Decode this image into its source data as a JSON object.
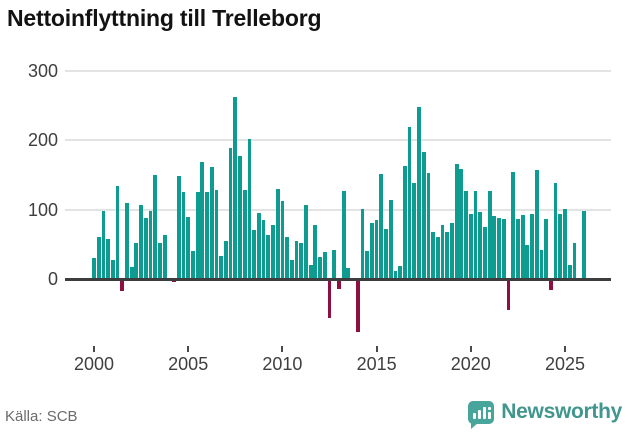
{
  "title": "Nettoinflyttning till Trelleborg",
  "source": "Källa: SCB",
  "logo": {
    "name": "Newsworthy",
    "icon": "bar-chart-speech-bubble-icon"
  },
  "chart_data": {
    "type": "bar",
    "title": "Nettoinflyttning till Trelleborg",
    "frequency": "quarterly",
    "start_year": 2000,
    "x_ticks": [
      2000,
      2005,
      2010,
      2015,
      2020,
      2025
    ],
    "y_ticks": [
      0,
      100,
      200,
      300
    ],
    "ylim": [
      -100,
      320
    ],
    "grid": "horizontal",
    "legend": "none",
    "colors": {
      "positive": "#0e9b90",
      "negative": "#8e1043",
      "axis": "#3d3d3d"
    },
    "series": [
      {
        "name": "Nettoinflyttning",
        "values": [
          30,
          60,
          98,
          58,
          28,
          134,
          -17,
          110,
          17,
          52,
          106,
          88,
          98,
          149,
          52,
          64,
          0,
          -5,
          148,
          125,
          89,
          40,
          125,
          168,
          125,
          161,
          128,
          33,
          54,
          189,
          262,
          177,
          128,
          201,
          70,
          95,
          85,
          64,
          77,
          129,
          112,
          61,
          28,
          54,
          52,
          106,
          20,
          77,
          31,
          39,
          -56,
          42,
          -14,
          126,
          16,
          0,
          -76,
          101,
          40,
          81,
          85,
          151,
          72,
          114,
          12,
          18,
          162,
          218,
          138,
          248,
          183,
          152,
          67,
          60,
          77,
          68,
          81,
          166,
          158,
          127,
          93,
          127,
          96,
          75,
          127,
          90,
          88,
          86,
          -45,
          154,
          87,
          92,
          49,
          93,
          157,
          42,
          87,
          -16,
          138,
          94,
          101,
          20,
          52,
          0,
          98
        ]
      }
    ]
  }
}
